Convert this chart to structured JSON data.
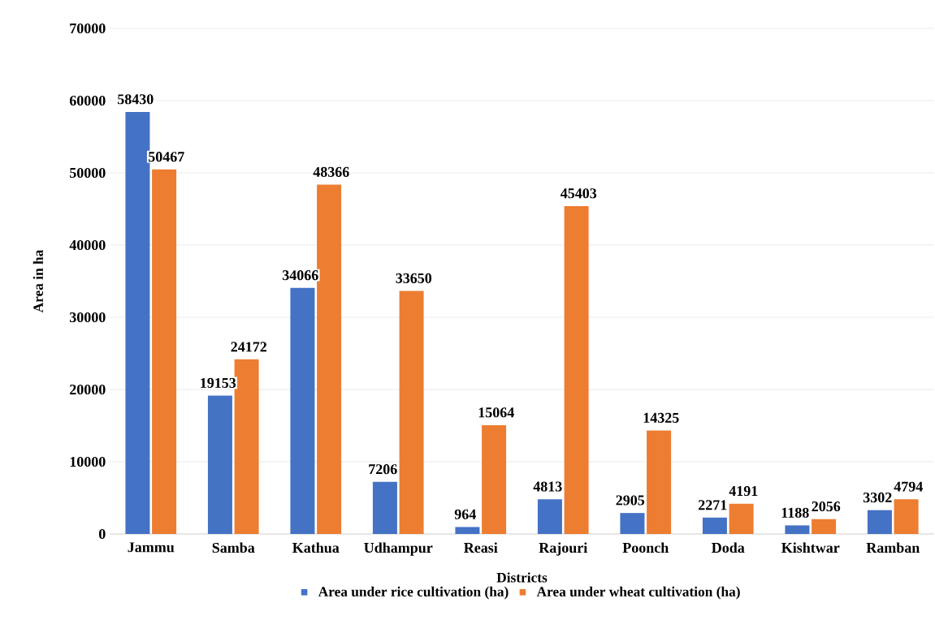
{
  "chart_data": {
    "type": "bar",
    "xlabel": "Districts",
    "ylabel": "Area in ha",
    "categories": [
      "Jammu",
      "Samba",
      "Kathua",
      "Udhampur",
      "Reasi",
      "Rajouri",
      "Poonch",
      "Doda",
      "Kishtwar",
      "Ramban"
    ],
    "series": [
      {
        "name": "Area under rice cultivation (ha)",
        "color": "#4472c4",
        "values": [
          58430,
          19153,
          34066,
          7206,
          964,
          4813,
          2905,
          2271,
          1188,
          3302
        ]
      },
      {
        "name": "Area under wheat cultivation (ha)",
        "color": "#ed7d31",
        "values": [
          50467,
          24172,
          48366,
          33650,
          15064,
          45403,
          14325,
          4191,
          2056,
          4794
        ]
      }
    ],
    "ylim": [
      0,
      70000
    ],
    "yticks": [
      0,
      10000,
      20000,
      30000,
      40000,
      50000,
      60000,
      70000
    ],
    "grid": "y",
    "legend": "bottom",
    "data_labels": true
  }
}
